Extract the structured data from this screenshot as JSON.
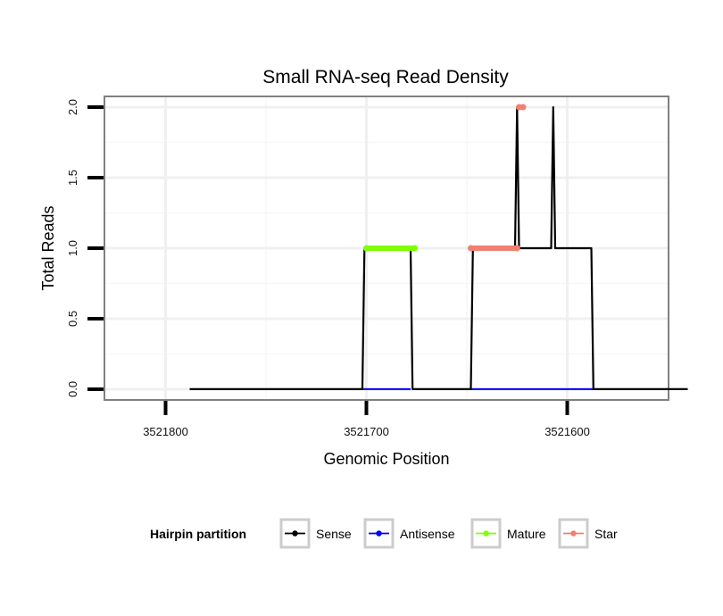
{
  "chart_data": {
    "type": "line",
    "title": "Small RNA-seq Read Density",
    "xlabel": "Genomic Position",
    "ylabel": "Total Reads",
    "x_reversed": true,
    "xlim": [
      3521830,
      3521550
    ],
    "ylim": [
      -0.07,
      2.07
    ],
    "x_ticks": [
      3521800,
      3521700,
      3521600
    ],
    "x_tick_labels": [
      "3521800",
      "3521700",
      "3521600"
    ],
    "y_ticks": [
      0,
      0.5,
      1,
      1.5,
      2
    ],
    "y_tick_labels": [
      "0.0",
      "0.5",
      "1.0",
      "1.5",
      "2.0"
    ],
    "grid": true,
    "series": [
      {
        "name": "Sense",
        "color": "#000000",
        "points": [
          [
            3521788,
            0
          ],
          [
            3521702,
            0
          ],
          [
            3521701,
            1
          ],
          [
            3521678,
            1
          ],
          [
            3521677,
            0
          ],
          [
            3521648,
            0
          ],
          [
            3521647,
            1
          ],
          [
            3521626,
            1
          ],
          [
            3521625,
            2
          ],
          [
            3521624,
            1
          ],
          [
            3521608,
            1
          ],
          [
            3521607,
            2
          ],
          [
            3521606,
            1
          ],
          [
            3521588,
            1
          ],
          [
            3521587,
            0
          ],
          [
            3521540,
            0
          ]
        ]
      },
      {
        "name": "Antisense",
        "color": "#0000ff",
        "points": [
          [
            3521702,
            0
          ],
          [
            3521678,
            0
          ]
        ]
      },
      {
        "name": "Antisense",
        "color": "#0000ff",
        "points": [
          [
            3521648,
            0
          ],
          [
            3521587,
            0
          ]
        ]
      },
      {
        "name": "Mature",
        "color": "#7fff00",
        "points": [
          [
            3521700,
            1
          ],
          [
            3521676,
            1
          ]
        ]
      },
      {
        "name": "Star",
        "color": "#f08070",
        "points": [
          [
            3521648,
            1
          ],
          [
            3521625,
            1
          ]
        ]
      },
      {
        "name": "Star",
        "color": "#f08070",
        "points": [
          [
            3521624,
            2
          ],
          [
            3521622,
            2
          ]
        ]
      }
    ],
    "legend": {
      "title": "Hairpin partition",
      "position": "bottom",
      "entries": [
        {
          "label": "Sense",
          "color": "#000000"
        },
        {
          "label": "Antisense",
          "color": "#0000ff"
        },
        {
          "label": "Mature",
          "color": "#7fff00"
        },
        {
          "label": "Star",
          "color": "#f08070"
        }
      ]
    }
  }
}
